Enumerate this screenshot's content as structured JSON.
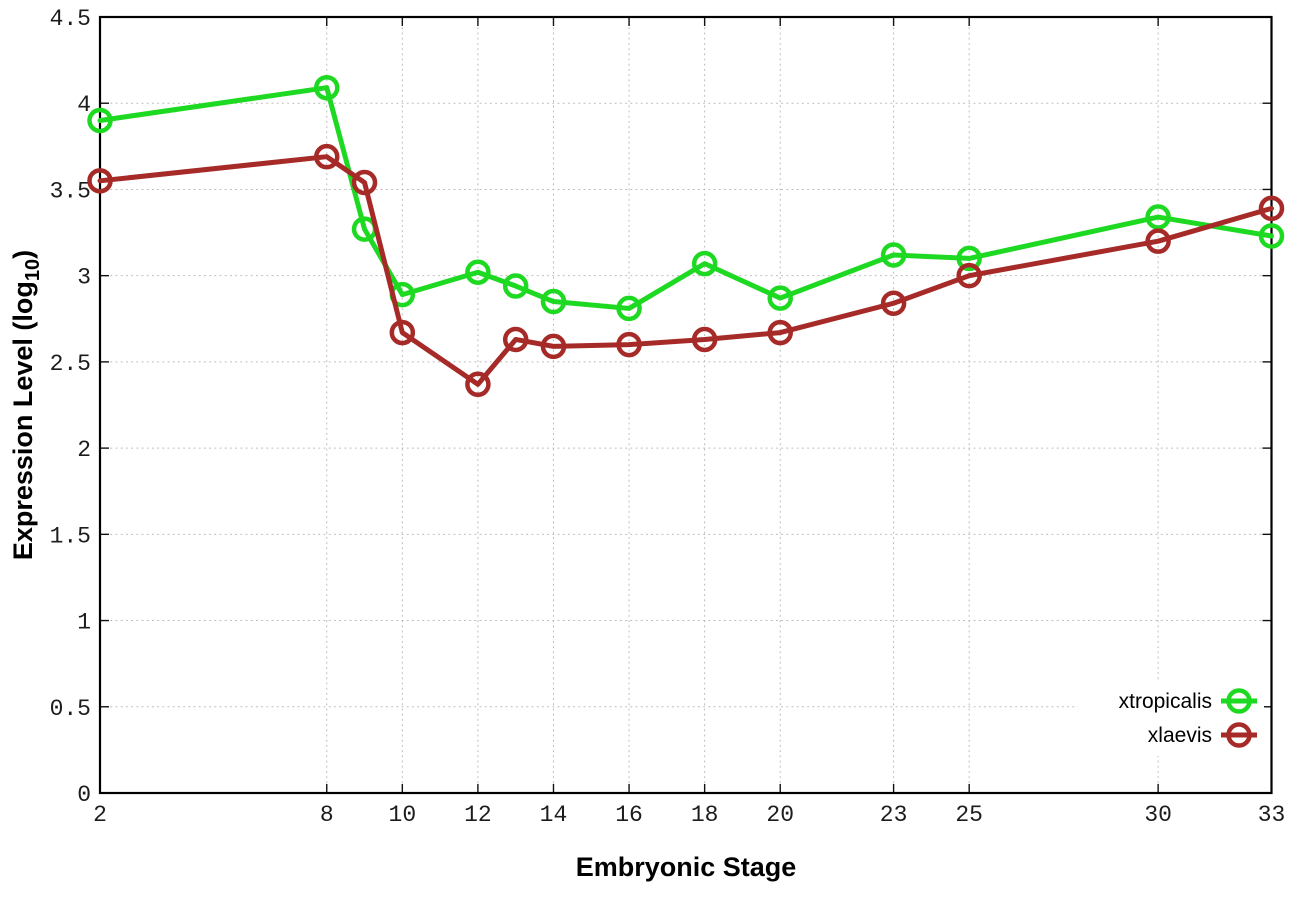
{
  "chart_data": {
    "type": "line",
    "title": "",
    "xlabel": "Embryonic Stage",
    "ylabel": "Expression Level (log10)",
    "ylabel_parts": {
      "pre": "Expression Level (log",
      "sub": "10",
      "post": ")"
    },
    "x": [
      2,
      8,
      9,
      10,
      12,
      13,
      14,
      16,
      18,
      20,
      23,
      25,
      30,
      33
    ],
    "series": [
      {
        "name": "xtropicalis",
        "color": "#1ed921",
        "values": [
          3.9,
          4.09,
          3.27,
          2.89,
          3.02,
          2.94,
          2.85,
          2.81,
          3.07,
          2.87,
          3.12,
          3.1,
          3.34,
          3.23
        ]
      },
      {
        "name": "xlaevis",
        "color": "#a62b28",
        "values": [
          3.55,
          3.69,
          3.54,
          2.67,
          2.37,
          2.63,
          2.59,
          2.6,
          2.63,
          2.67,
          2.84,
          3.0,
          3.2,
          3.39
        ]
      }
    ],
    "xlim": [
      2,
      33
    ],
    "ylim": [
      0,
      4.5
    ],
    "xticks": [
      2,
      8,
      10,
      12,
      14,
      16,
      18,
      20,
      23,
      25,
      30,
      33
    ],
    "xtick_labels": [
      "2",
      "8",
      "10",
      "12",
      "14",
      "16",
      "18",
      "20",
      "23",
      "25",
      "30",
      "33"
    ],
    "yticks": [
      0,
      0.5,
      1,
      1.5,
      2,
      2.5,
      3,
      3.5,
      4,
      4.5
    ],
    "ytick_labels": [
      "0",
      "0.5",
      "1",
      "1.5",
      "2",
      "2.5",
      "3",
      "3.5",
      "4",
      "4.5"
    ],
    "grid": true,
    "grid_style": "dotted",
    "marker": "open-circle",
    "legend_position": "bottom-right",
    "legend_entries": [
      "xtropicalis",
      "xlaevis"
    ]
  },
  "colors": {
    "background": "#ffffff",
    "border": "#000000",
    "grid": "#b9b9b9",
    "tick_text": "#1c1c1c",
    "title_text": "#000000",
    "xtropicalis": "#1ed921",
    "xlaevis": "#a62b28"
  }
}
